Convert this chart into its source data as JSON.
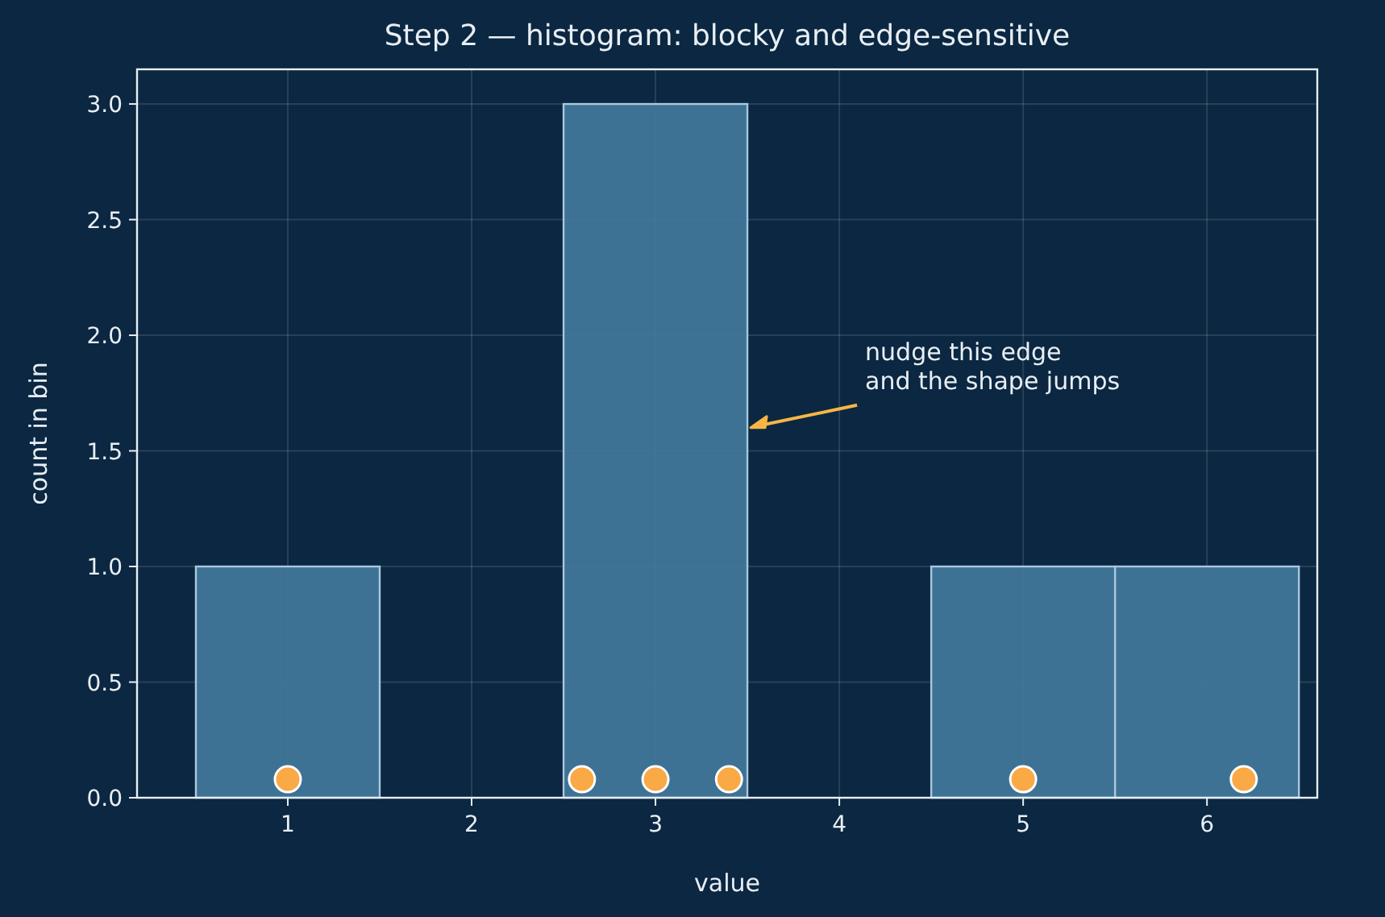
{
  "chart_data": {
    "type": "histogram",
    "title": "Step 2 — histogram: blocky and edge-sensitive",
    "xlabel": "value",
    "ylabel": "count in bin",
    "bins": [
      0.5,
      1.5,
      2.5,
      3.5,
      4.5,
      5.5,
      6.5
    ],
    "values": [
      1,
      0,
      3,
      0,
      1,
      1
    ],
    "color": "#41769a",
    "series": [
      {
        "type": "scatter",
        "color": "#f9a945",
        "x": [
          1,
          2.6,
          3,
          3.4,
          5,
          6.2
        ],
        "values": [
          0.08,
          0.08,
          0.08,
          0.08,
          0.08,
          0.08
        ]
      }
    ],
    "xlim": [
      0.18,
      6.6
    ],
    "xticks": [
      1,
      2,
      3,
      4,
      5,
      6
    ],
    "ylim": [
      0,
      3.15
    ],
    "yticks": [
      {
        "value": 0,
        "label": "0.0"
      },
      {
        "value": 0.5,
        "label": "0.5"
      },
      {
        "value": 1,
        "label": "1.0"
      },
      {
        "value": 1.5,
        "label": "1.5"
      },
      {
        "value": 2,
        "label": "2.0"
      },
      {
        "value": 2.5,
        "label": "2.5"
      },
      {
        "value": 3,
        "label": "3.0"
      }
    ],
    "grid": true,
    "marker": "circle",
    "annotations": [
      {
        "text": "nudge this edge\nand the shape jumps",
        "x": 3.5,
        "y": 1.6
      }
    ]
  }
}
